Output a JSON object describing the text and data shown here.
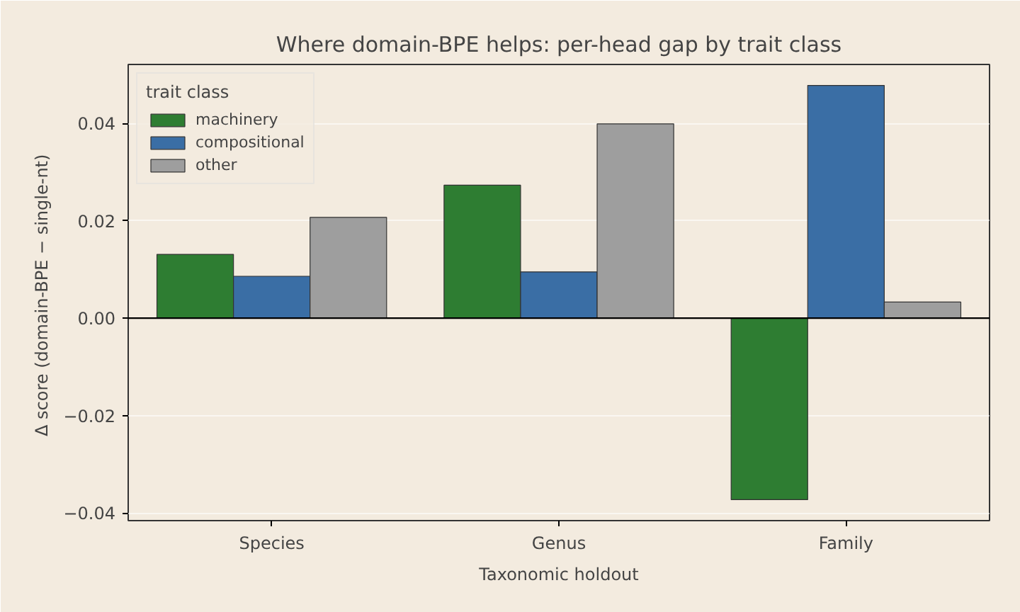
{
  "chart_data": {
    "type": "bar",
    "title": "Where domain-BPE helps: per-head gap by trait class",
    "xlabel": "Taxonomic holdout",
    "ylabel": "Δ score  (domain-BPE − single-nt)",
    "legend_title": "trait class",
    "categories": [
      "Species",
      "Genus",
      "Family"
    ],
    "series": [
      {
        "name": "machinery",
        "color": "#2e7d32",
        "values": [
          0.0131,
          0.0273,
          -0.0373
        ]
      },
      {
        "name": "compositional",
        "color": "#3a6ea5",
        "values": [
          0.0086,
          0.0095,
          0.0478
        ]
      },
      {
        "name": "other",
        "color": "#9e9e9e",
        "values": [
          0.0207,
          0.0399,
          0.0033
        ]
      }
    ],
    "ylim": [
      -0.0416,
      0.0521
    ],
    "yticks": [
      {
        "value": -0.04,
        "label": "−0.04"
      },
      {
        "value": -0.02,
        "label": "−0.02"
      },
      {
        "value": 0,
        "label": "0.00"
      },
      {
        "value": 0.02,
        "label": "0.02"
      },
      {
        "value": 0.04,
        "label": "0.04"
      }
    ],
    "ref_lines": [
      {
        "axis": "y",
        "value": 0,
        "color": "#000000"
      }
    ],
    "grid": "y",
    "legend": "top left"
  }
}
